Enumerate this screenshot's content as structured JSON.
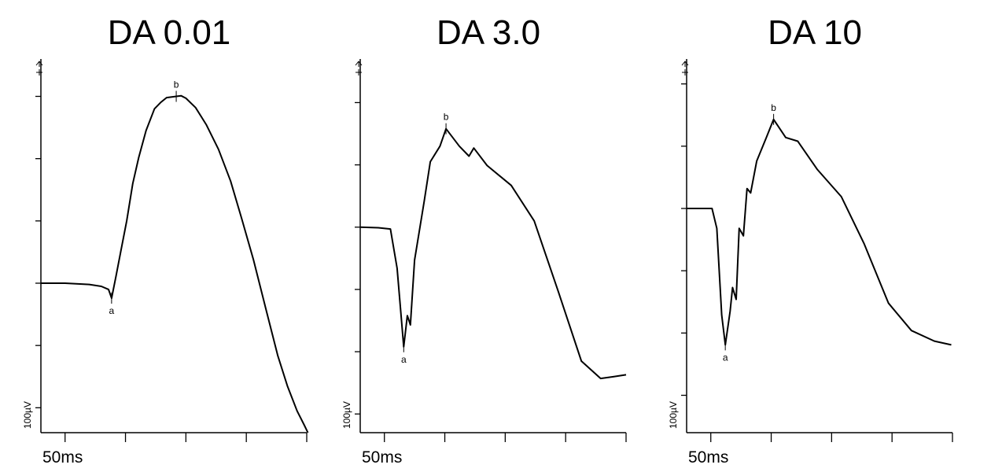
{
  "chart_data": [
    {
      "type": "line",
      "title": "DA 0.01",
      "x_label": "50ms",
      "y_label": "100µV",
      "color": "#000000",
      "xlim": [
        0,
        220
      ],
      "xticks": [
        20,
        70,
        120,
        170,
        220
      ],
      "ylim": [
        -240,
        360
      ],
      "yticks": [
        -200,
        -100,
        0,
        100,
        200,
        300
      ],
      "x": [
        0,
        20,
        40,
        50,
        56,
        58.5,
        62,
        66,
        71,
        76,
        81,
        87,
        94,
        99,
        104,
        112,
        116,
        120,
        128,
        137,
        147,
        157,
        166,
        176,
        186,
        196,
        204,
        212,
        218,
        221
      ],
      "values": [
        0,
        0,
        -2,
        -5,
        -10,
        -24,
        10,
        50,
        100,
        160,
        202,
        245,
        280,
        290,
        298,
        300,
        301,
        297,
        282,
        254,
        215,
        164,
        105,
        37,
        -40,
        -116,
        -165,
        -205,
        -228,
        -240
      ],
      "annotations": [
        {
          "text": "a",
          "x": 58.5,
          "value": -24
        },
        {
          "text": "b",
          "x": 112,
          "value": 300
        }
      ]
    },
    {
      "type": "line",
      "title": "DA 3.0",
      "x_label": "50ms",
      "y_label": "100µV",
      "color": "#000000",
      "xlim": [
        0,
        220
      ],
      "xticks": [
        20,
        70,
        120,
        170,
        220
      ],
      "ylim": [
        -330,
        270
      ],
      "yticks": [
        -300,
        -200,
        -100,
        0,
        100,
        200
      ],
      "x": [
        0,
        15,
        25,
        30.5,
        36,
        39,
        41.5,
        45,
        53,
        58,
        66,
        71,
        82,
        90,
        94,
        105,
        125,
        144,
        164,
        183,
        199,
        210,
        220
      ],
      "values": [
        0,
        -1,
        -3,
        -66,
        -192,
        -142,
        -157,
        -53,
        42,
        105,
        130,
        158,
        130,
        114,
        127,
        99,
        67,
        10,
        -104,
        -215,
        -243,
        -240,
        -237
      ],
      "annotations": [
        {
          "text": "a",
          "x": 36,
          "value": -192
        },
        {
          "text": "b",
          "x": 71,
          "value": 158
        }
      ]
    },
    {
      "type": "line",
      "title": "DA 10",
      "x_label": "50ms",
      "y_label": "100µV",
      "color": "#000000",
      "xlim": [
        0,
        220
      ],
      "xticks": [
        20,
        70,
        120,
        170,
        220
      ],
      "ylim": [
        -360,
        240
      ],
      "yticks": [
        -300,
        -200,
        -100,
        0,
        100,
        200
      ],
      "x": [
        0,
        21,
        25,
        29,
        32,
        36,
        38,
        41,
        43.5,
        47,
        50,
        53,
        58,
        66,
        72,
        82,
        92,
        108,
        128,
        147,
        167,
        186,
        205,
        219
      ],
      "values": [
        0,
        0,
        -32,
        -171,
        -219,
        -165,
        -127,
        -146,
        -32,
        -44,
        32,
        25,
        76,
        114,
        143,
        114,
        108,
        63,
        19,
        -57,
        -152,
        -196,
        -213,
        -219
      ],
      "annotations": [
        {
          "text": "a",
          "x": 32,
          "value": -219
        },
        {
          "text": "b",
          "x": 72,
          "value": 143
        }
      ]
    }
  ]
}
